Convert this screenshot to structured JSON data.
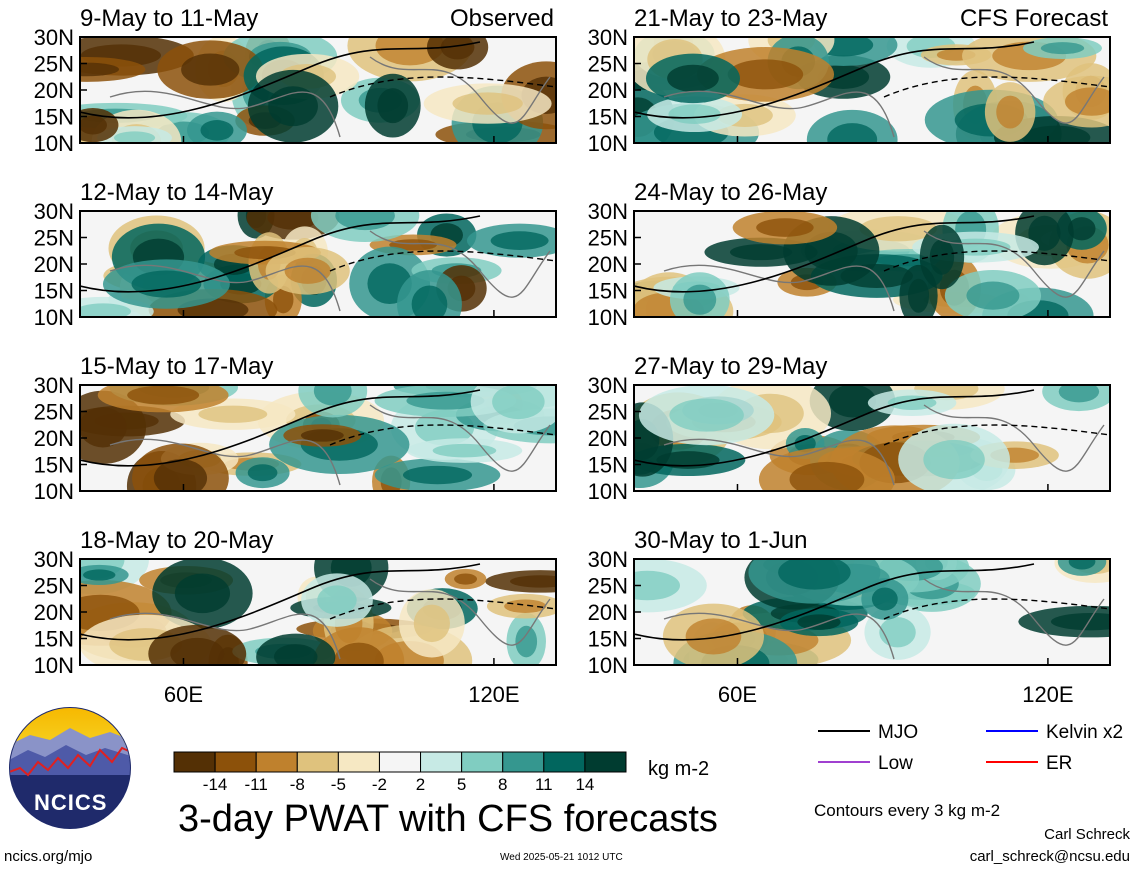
{
  "header": {
    "left_tag": "Observed",
    "right_tag": "CFS Forecast"
  },
  "panels_left": [
    {
      "title": "9-May to 11-May"
    },
    {
      "title": "12-May to 14-May"
    },
    {
      "title": "15-May to 17-May"
    },
    {
      "title": "18-May to 20-May"
    }
  ],
  "panels_right": [
    {
      "title": "21-May to 23-May"
    },
    {
      "title": "24-May to 26-May"
    },
    {
      "title": "27-May to 29-May"
    },
    {
      "title": "30-May to 1-Jun"
    }
  ],
  "chart_data": {
    "type": "heatmap",
    "title": "3-day PWAT with CFS forecasts",
    "units": "kg m-2",
    "y_ticks": [
      "30N",
      "25N",
      "20N",
      "15N",
      "10N"
    ],
    "x_ticks": [
      "60E",
      "120E"
    ],
    "colorbar": {
      "labels": [
        "-14",
        "-11",
        "-8",
        "-5",
        "-2",
        "2",
        "5",
        "8",
        "11",
        "14"
      ],
      "colors": [
        "#543005",
        "#8c510a",
        "#bf812d",
        "#dfc27d",
        "#f6e8c3",
        "#f5f5f5",
        "#c7eae5",
        "#80cdc1",
        "#35978f",
        "#01665e",
        "#003c30"
      ]
    },
    "legend": [
      {
        "name": "MJO",
        "color": "#000000"
      },
      {
        "name": "Kelvin x2",
        "color": "#0000ff"
      },
      {
        "name": "Low",
        "color": "#a040d0"
      },
      {
        "name": "ER",
        "color": "#ff0000"
      }
    ],
    "contour_note": "Contours every 3 kg m-2"
  },
  "footer": {
    "logo_text": "NCICS",
    "url": "ncics.org/mjo",
    "timestamp": "Wed 2025-05-21 1012 UTC",
    "author": "Carl Schreck",
    "email": "carl_schreck@ncsu.edu"
  }
}
